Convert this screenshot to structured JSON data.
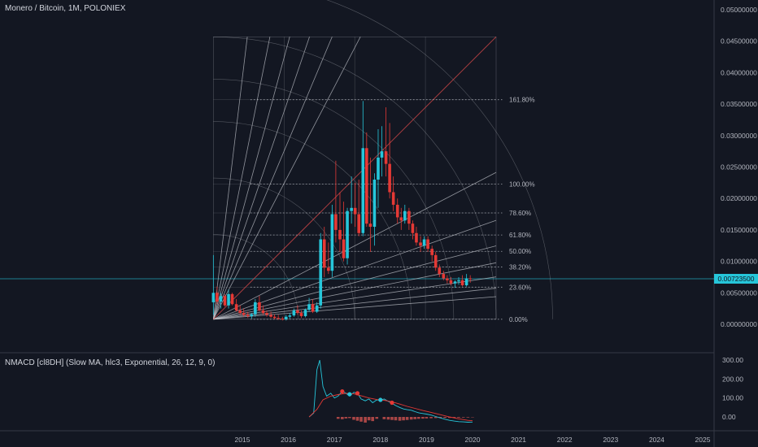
{
  "chart_title": "Monero / Bitcoin, 1M, POLONIEX",
  "indicator_title": "NMACD [cl8DH] (Slow MA, hlc3, Exponential, 26, 12, 9, 0)",
  "current_price": "0.00723500",
  "colors": {
    "background": "#131722",
    "grid": "#2a2e39",
    "up": "#26c6da",
    "down": "#e53935",
    "gann": "#c8cbd2",
    "gann_diag": "#e04b4b",
    "axis_text": "#b2b5be"
  },
  "chart_data": [
    {
      "type": "candlestick",
      "x_ticks": [
        "2015",
        "2016",
        "2017",
        "2018",
        "2019",
        "2020",
        "2021",
        "2022",
        "2023",
        "2024",
        "2025"
      ],
      "y_ticks": [
        "0.05000000",
        "0.04500000",
        "0.04000000",
        "0.03500000",
        "0.03000000",
        "0.02500000",
        "0.02000000",
        "0.01500000",
        "0.01000000",
        "0.00500000",
        "0.00000000"
      ],
      "ylim": [
        0,
        0.05
      ],
      "fib_levels": [
        {
          "label": "161.80%",
          "value": 0.0357
        },
        {
          "label": "100.00%",
          "value": 0.0223
        },
        {
          "label": "78.60%",
          "value": 0.0177
        },
        {
          "label": "61.80%",
          "value": 0.0142
        },
        {
          "label": "50.00%",
          "value": 0.0116
        },
        {
          "label": "38.20%",
          "value": 0.0091
        },
        {
          "label": "23.60%",
          "value": 0.0059
        },
        {
          "label": "0.00%",
          "value": 0.0008
        }
      ],
      "current_value": 0.007235,
      "candles": [
        {
          "t": 2014.37,
          "o": 0.0035,
          "h": 0.011,
          "l": 0.0015,
          "c": 0.005
        },
        {
          "t": 2014.45,
          "o": 0.005,
          "h": 0.006,
          "l": 0.0032,
          "c": 0.0036
        },
        {
          "t": 2014.53,
          "o": 0.0036,
          "h": 0.005,
          "l": 0.0025,
          "c": 0.0045
        },
        {
          "t": 2014.62,
          "o": 0.0045,
          "h": 0.0048,
          "l": 0.0028,
          "c": 0.003
        },
        {
          "t": 2014.7,
          "o": 0.003,
          "h": 0.0055,
          "l": 0.0025,
          "c": 0.0048
        },
        {
          "t": 2014.78,
          "o": 0.0048,
          "h": 0.005,
          "l": 0.003,
          "c": 0.0032
        },
        {
          "t": 2014.87,
          "o": 0.0032,
          "h": 0.004,
          "l": 0.002,
          "c": 0.0022
        },
        {
          "t": 2014.95,
          "o": 0.0022,
          "h": 0.003,
          "l": 0.0015,
          "c": 0.0018
        },
        {
          "t": 2015.03,
          "o": 0.0018,
          "h": 0.0025,
          "l": 0.0012,
          "c": 0.0015
        },
        {
          "t": 2015.12,
          "o": 0.0015,
          "h": 0.002,
          "l": 0.001,
          "c": 0.0013
        },
        {
          "t": 2015.2,
          "o": 0.0013,
          "h": 0.0018,
          "l": 0.0009,
          "c": 0.0016
        },
        {
          "t": 2015.28,
          "o": 0.0016,
          "h": 0.004,
          "l": 0.0012,
          "c": 0.0035
        },
        {
          "t": 2015.37,
          "o": 0.0035,
          "h": 0.0045,
          "l": 0.002,
          "c": 0.0022
        },
        {
          "t": 2015.45,
          "o": 0.0022,
          "h": 0.003,
          "l": 0.0015,
          "c": 0.0018
        },
        {
          "t": 2015.53,
          "o": 0.0018,
          "h": 0.0022,
          "l": 0.0012,
          "c": 0.0015
        },
        {
          "t": 2015.62,
          "o": 0.0015,
          "h": 0.002,
          "l": 0.001,
          "c": 0.0012
        },
        {
          "t": 2015.7,
          "o": 0.0012,
          "h": 0.0016,
          "l": 0.0008,
          "c": 0.001
        },
        {
          "t": 2015.78,
          "o": 0.001,
          "h": 0.0015,
          "l": 0.0007,
          "c": 0.0009
        },
        {
          "t": 2015.87,
          "o": 0.0009,
          "h": 0.0012,
          "l": 0.0006,
          "c": 0.0008
        },
        {
          "t": 2015.95,
          "o": 0.0008,
          "h": 0.0015,
          "l": 0.0006,
          "c": 0.0012
        },
        {
          "t": 2016.03,
          "o": 0.0012,
          "h": 0.0018,
          "l": 0.0009,
          "c": 0.0014
        },
        {
          "t": 2016.12,
          "o": 0.0014,
          "h": 0.0025,
          "l": 0.0012,
          "c": 0.0022
        },
        {
          "t": 2016.2,
          "o": 0.0022,
          "h": 0.003,
          "l": 0.0015,
          "c": 0.0018
        },
        {
          "t": 2016.28,
          "o": 0.0018,
          "h": 0.0022,
          "l": 0.001,
          "c": 0.0013
        },
        {
          "t": 2016.37,
          "o": 0.0013,
          "h": 0.0025,
          "l": 0.0011,
          "c": 0.0023
        },
        {
          "t": 2016.45,
          "o": 0.0023,
          "h": 0.0042,
          "l": 0.002,
          "c": 0.0032
        },
        {
          "t": 2016.53,
          "o": 0.0032,
          "h": 0.004,
          "l": 0.0018,
          "c": 0.002
        },
        {
          "t": 2016.62,
          "o": 0.002,
          "h": 0.0035,
          "l": 0.0018,
          "c": 0.003
        },
        {
          "t": 2016.7,
          "o": 0.003,
          "h": 0.0145,
          "l": 0.0025,
          "c": 0.0135
        },
        {
          "t": 2016.78,
          "o": 0.0135,
          "h": 0.0155,
          "l": 0.0075,
          "c": 0.009
        },
        {
          "t": 2016.87,
          "o": 0.009,
          "h": 0.013,
          "l": 0.008,
          "c": 0.0085
        },
        {
          "t": 2016.95,
          "o": 0.0085,
          "h": 0.019,
          "l": 0.0075,
          "c": 0.0175
        },
        {
          "t": 2017.03,
          "o": 0.0175,
          "h": 0.026,
          "l": 0.013,
          "c": 0.015
        },
        {
          "t": 2017.12,
          "o": 0.015,
          "h": 0.021,
          "l": 0.0115,
          "c": 0.0135
        },
        {
          "t": 2017.2,
          "o": 0.0135,
          "h": 0.0195,
          "l": 0.01,
          "c": 0.0105
        },
        {
          "t": 2017.28,
          "o": 0.0105,
          "h": 0.0185,
          "l": 0.0095,
          "c": 0.018
        },
        {
          "t": 2017.37,
          "o": 0.018,
          "h": 0.0235,
          "l": 0.016,
          "c": 0.0185
        },
        {
          "t": 2017.45,
          "o": 0.0185,
          "h": 0.0225,
          "l": 0.0155,
          "c": 0.0175
        },
        {
          "t": 2017.53,
          "o": 0.0175,
          "h": 0.023,
          "l": 0.014,
          "c": 0.0145
        },
        {
          "t": 2017.62,
          "o": 0.0145,
          "h": 0.0355,
          "l": 0.014,
          "c": 0.028
        },
        {
          "t": 2017.7,
          "o": 0.028,
          "h": 0.0305,
          "l": 0.0155,
          "c": 0.016
        },
        {
          "t": 2017.78,
          "o": 0.016,
          "h": 0.0265,
          "l": 0.0115,
          "c": 0.0155
        },
        {
          "t": 2017.87,
          "o": 0.0155,
          "h": 0.024,
          "l": 0.0125,
          "c": 0.023
        },
        {
          "t": 2017.95,
          "o": 0.023,
          "h": 0.031,
          "l": 0.0185,
          "c": 0.0265
        },
        {
          "t": 2018.03,
          "o": 0.0265,
          "h": 0.0315,
          "l": 0.0235,
          "c": 0.0275
        },
        {
          "t": 2018.12,
          "o": 0.0275,
          "h": 0.0345,
          "l": 0.0235,
          "c": 0.0255
        },
        {
          "t": 2018.2,
          "o": 0.0255,
          "h": 0.032,
          "l": 0.02,
          "c": 0.021
        },
        {
          "t": 2018.28,
          "o": 0.021,
          "h": 0.0235,
          "l": 0.018,
          "c": 0.019
        },
        {
          "t": 2018.37,
          "o": 0.019,
          "h": 0.02,
          "l": 0.016,
          "c": 0.017
        },
        {
          "t": 2018.45,
          "o": 0.017,
          "h": 0.0185,
          "l": 0.015,
          "c": 0.0165
        },
        {
          "t": 2018.53,
          "o": 0.0165,
          "h": 0.019,
          "l": 0.016,
          "c": 0.018
        },
        {
          "t": 2018.62,
          "o": 0.018,
          "h": 0.0185,
          "l": 0.015,
          "c": 0.016
        },
        {
          "t": 2018.7,
          "o": 0.016,
          "h": 0.0165,
          "l": 0.0135,
          "c": 0.0145
        },
        {
          "t": 2018.78,
          "o": 0.0145,
          "h": 0.0155,
          "l": 0.0125,
          "c": 0.013
        },
        {
          "t": 2018.87,
          "o": 0.013,
          "h": 0.014,
          "l": 0.0115,
          "c": 0.0125
        },
        {
          "t": 2018.95,
          "o": 0.0125,
          "h": 0.014,
          "l": 0.012,
          "c": 0.0135
        },
        {
          "t": 2019.03,
          "o": 0.0135,
          "h": 0.014,
          "l": 0.0115,
          "c": 0.012
        },
        {
          "t": 2019.12,
          "o": 0.012,
          "h": 0.0125,
          "l": 0.01,
          "c": 0.011
        },
        {
          "t": 2019.2,
          "o": 0.011,
          "h": 0.0115,
          "l": 0.0085,
          "c": 0.009
        },
        {
          "t": 2019.28,
          "o": 0.009,
          "h": 0.0095,
          "l": 0.0075,
          "c": 0.008
        },
        {
          "t": 2019.37,
          "o": 0.008,
          "h": 0.0085,
          "l": 0.007,
          "c": 0.0073
        },
        {
          "t": 2019.45,
          "o": 0.0073,
          "h": 0.0078,
          "l": 0.0065,
          "c": 0.007
        },
        {
          "t": 2019.53,
          "o": 0.007,
          "h": 0.0075,
          "l": 0.0062,
          "c": 0.0065
        },
        {
          "t": 2019.62,
          "o": 0.0065,
          "h": 0.007,
          "l": 0.0058,
          "c": 0.0068
        },
        {
          "t": 2019.7,
          "o": 0.0068,
          "h": 0.0075,
          "l": 0.0063,
          "c": 0.007
        },
        {
          "t": 2019.78,
          "o": 0.007,
          "h": 0.0078,
          "l": 0.006,
          "c": 0.0062
        },
        {
          "t": 2019.87,
          "o": 0.0062,
          "h": 0.008,
          "l": 0.006,
          "c": 0.0073
        },
        {
          "t": 2019.95,
          "o": 0.0073,
          "h": 0.0078,
          "l": 0.0066,
          "c": 0.0072
        }
      ]
    },
    {
      "type": "line",
      "y_ticks": [
        "300.00",
        "200.00",
        "100.00",
        "0.00"
      ],
      "ylim": [
        -60,
        320
      ],
      "macd": [
        [
          2016.45,
          0
        ],
        [
          2016.55,
          20
        ],
        [
          2016.62,
          250
        ],
        [
          2016.68,
          300
        ],
        [
          2016.75,
          160
        ],
        [
          2016.83,
          110
        ],
        [
          2016.92,
          125
        ],
        [
          2017.0,
          100
        ],
        [
          2017.08,
          110
        ],
        [
          2017.17,
          135
        ],
        [
          2017.25,
          125
        ],
        [
          2017.33,
          110
        ],
        [
          2017.42,
          130
        ],
        [
          2017.5,
          125
        ],
        [
          2017.58,
          95
        ],
        [
          2017.67,
          85
        ],
        [
          2017.75,
          95
        ],
        [
          2017.83,
          75
        ],
        [
          2017.92,
          90
        ],
        [
          2018.0,
          88
        ],
        [
          2018.08,
          95
        ],
        [
          2018.17,
          82
        ],
        [
          2018.25,
          72
        ],
        [
          2018.33,
          60
        ],
        [
          2018.42,
          50
        ],
        [
          2018.5,
          42
        ],
        [
          2018.58,
          38
        ],
        [
          2018.67,
          35
        ],
        [
          2018.75,
          28
        ],
        [
          2018.83,
          22
        ],
        [
          2018.92,
          18
        ],
        [
          2019.0,
          15
        ],
        [
          2019.1,
          10
        ],
        [
          2019.2,
          2
        ],
        [
          2019.3,
          -5
        ],
        [
          2019.4,
          -12
        ],
        [
          2019.5,
          -18
        ],
        [
          2019.6,
          -22
        ],
        [
          2019.7,
          -25
        ],
        [
          2019.8,
          -26
        ],
        [
          2019.9,
          -28
        ],
        [
          2020.0,
          -27
        ]
      ],
      "signal": [
        [
          2016.45,
          0
        ],
        [
          2016.62,
          40
        ],
        [
          2016.75,
          90
        ],
        [
          2016.92,
          110
        ],
        [
          2017.08,
          118
        ],
        [
          2017.25,
          125
        ],
        [
          2017.42,
          122
        ],
        [
          2017.58,
          112
        ],
        [
          2017.75,
          100
        ],
        [
          2017.92,
          92
        ],
        [
          2018.08,
          88
        ],
        [
          2018.25,
          80
        ],
        [
          2018.42,
          68
        ],
        [
          2018.58,
          56
        ],
        [
          2018.75,
          45
        ],
        [
          2018.92,
          34
        ],
        [
          2019.1,
          24
        ],
        [
          2019.3,
          12
        ],
        [
          2019.5,
          0
        ],
        [
          2019.7,
          -10
        ],
        [
          2019.9,
          -18
        ],
        [
          2020.0,
          -20
        ]
      ],
      "cross_markers": [
        {
          "t": 2017.17,
          "v": 135,
          "color": "down"
        },
        {
          "t": 2017.33,
          "v": 120,
          "color": "up"
        },
        {
          "t": 2017.5,
          "v": 125,
          "color": "down"
        },
        {
          "t": 2018.0,
          "v": 90,
          "color": "up"
        },
        {
          "t": 2018.25,
          "v": 75,
          "color": "down"
        }
      ],
      "histogram": [
        [
          2017.08,
          -10
        ],
        [
          2017.17,
          -12
        ],
        [
          2017.25,
          -8
        ],
        [
          2017.33,
          -6
        ],
        [
          2017.42,
          -15
        ],
        [
          2017.5,
          -20
        ],
        [
          2017.58,
          -25
        ],
        [
          2017.67,
          -30
        ],
        [
          2017.75,
          -18
        ],
        [
          2017.83,
          -22
        ],
        [
          2017.92,
          -10
        ],
        [
          2018.08,
          -12
        ],
        [
          2018.17,
          -14
        ],
        [
          2018.25,
          -16
        ],
        [
          2018.33,
          -18
        ],
        [
          2018.42,
          -20
        ],
        [
          2018.5,
          -18
        ],
        [
          2018.58,
          -16
        ],
        [
          2018.67,
          -14
        ],
        [
          2018.75,
          -12
        ],
        [
          2018.83,
          -10
        ],
        [
          2018.92,
          -9
        ],
        [
          2019.0,
          -8
        ],
        [
          2019.1,
          -7
        ],
        [
          2019.2,
          -6
        ],
        [
          2019.3,
          -6
        ],
        [
          2019.4,
          -5
        ],
        [
          2019.5,
          -5
        ],
        [
          2019.6,
          -4
        ],
        [
          2019.7,
          -4
        ],
        [
          2019.8,
          -3
        ],
        [
          2019.9,
          -3
        ],
        [
          2020.0,
          -2
        ]
      ]
    }
  ]
}
